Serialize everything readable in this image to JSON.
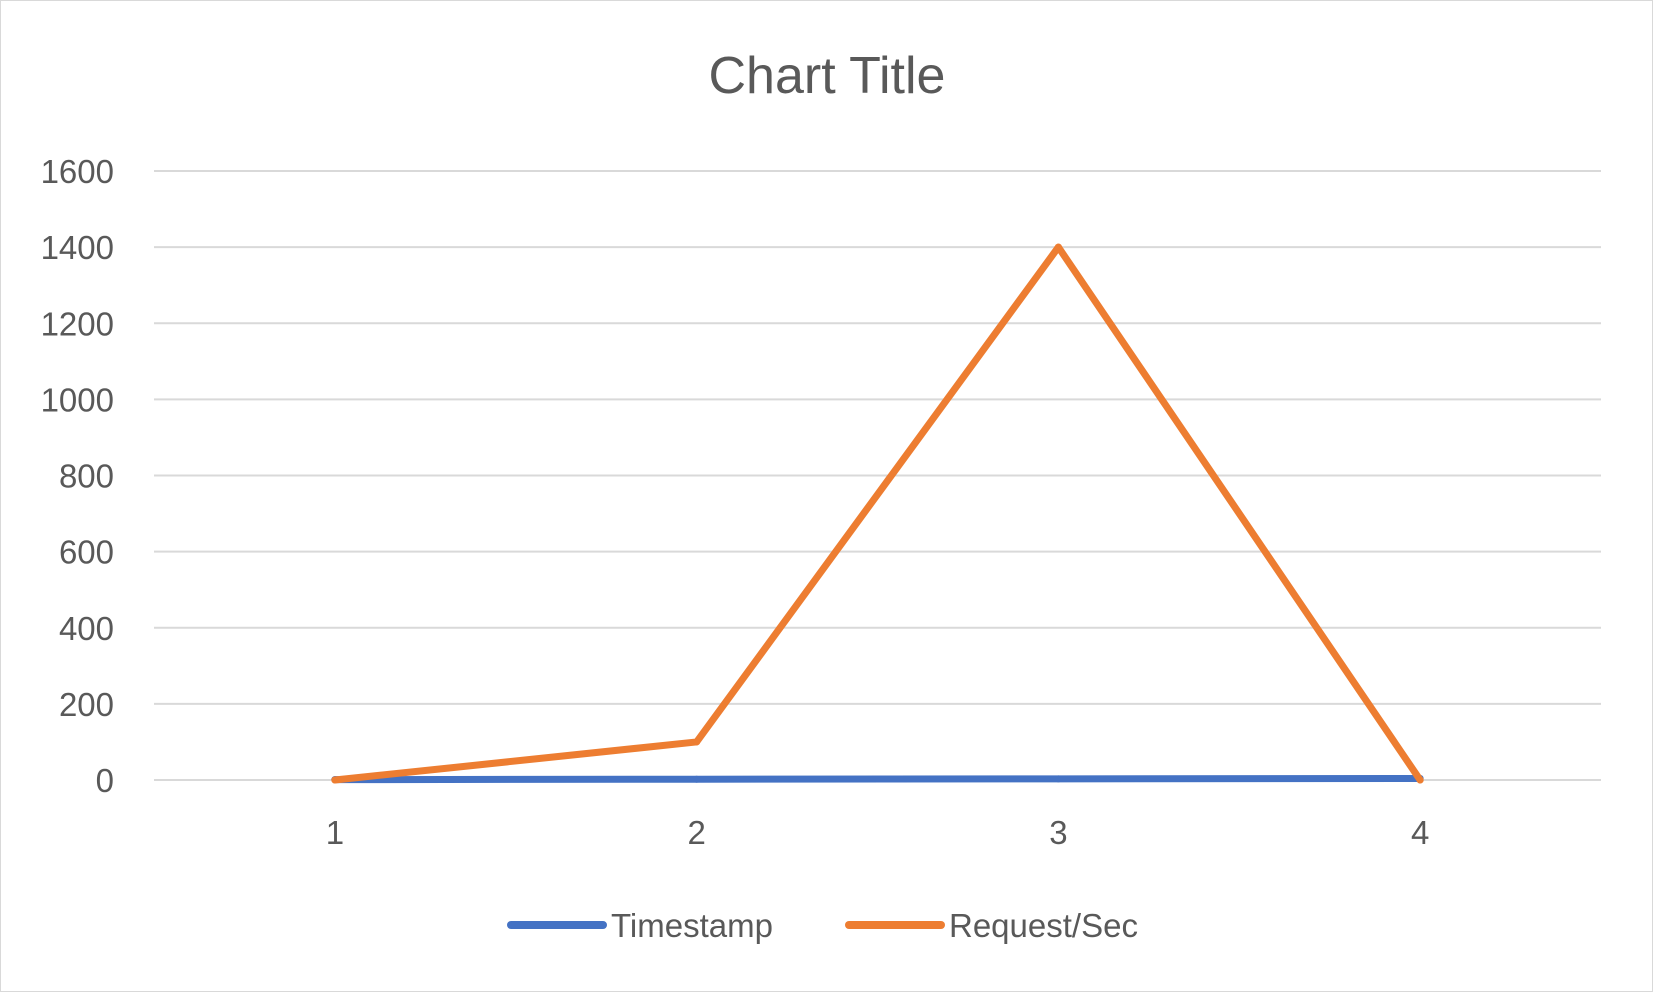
{
  "chart_data": {
    "type": "line",
    "title": "Chart Title",
    "xlabel": "",
    "ylabel": "",
    "categories": [
      "1",
      "2",
      "3",
      "4"
    ],
    "ylim": [
      0,
      1600
    ],
    "yticks": [
      "0",
      "200",
      "400",
      "600",
      "800",
      "1000",
      "1200",
      "1400",
      "1600"
    ],
    "grid": true,
    "legend_position": "bottom",
    "series": [
      {
        "name": "Timestamp",
        "color": "#4472c4",
        "values": [
          1,
          2,
          3,
          4
        ]
      },
      {
        "name": "Request/Sec",
        "color": "#ed7d31",
        "values": [
          0,
          100,
          1400,
          0
        ]
      }
    ]
  }
}
